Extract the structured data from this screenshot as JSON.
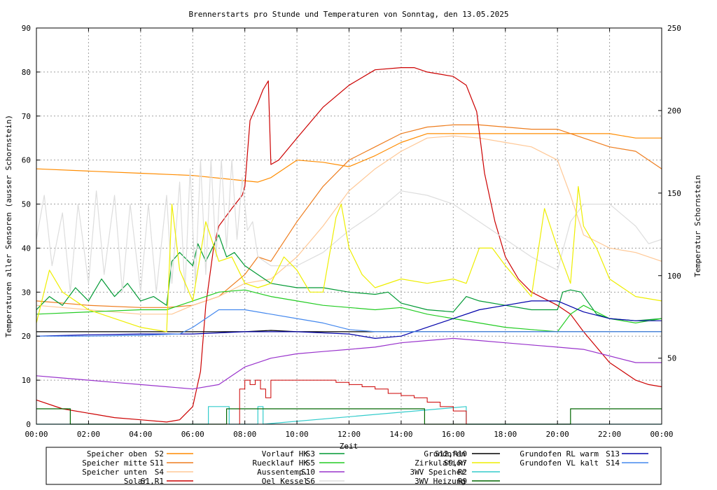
{
  "chart_data": {
    "type": "line",
    "title": "Brennerstarts pro Stunde und Temperaturen von Sonntag, den 13.05.2025",
    "xlabel": "Zeit",
    "ylabel": "Temperaturen aller Sensoren (ausser Schornstein)",
    "y2label": "Temperatur Schornstein",
    "xlim": [
      0,
      24
    ],
    "ylim": [
      0,
      90
    ],
    "y2lim": [
      10,
      250
    ],
    "grid": true,
    "x_ticks": [
      "00:00",
      "02:00",
      "04:00",
      "06:00",
      "08:00",
      "10:00",
      "12:00",
      "14:00",
      "16:00",
      "18:00",
      "20:00",
      "22:00",
      "00:00"
    ],
    "y_ticks": [
      "0",
      "10",
      "20",
      "30",
      "40",
      "50",
      "60",
      "70",
      "80",
      "90"
    ],
    "y2_ticks": [
      "50",
      "100",
      "150",
      "200",
      "250"
    ],
    "colors": {
      "ylabel": "#000000",
      "y2label": "#ff33ff",
      "grid": "#a0a0a0"
    },
    "legend": [
      {
        "name": "Speicher oben",
        "code": "S2",
        "color": "#ff8c00"
      },
      {
        "name": "Speicher mitte",
        "code": "S11",
        "color": "#ee7d1e"
      },
      {
        "name": "Speicher unten",
        "code": "S4",
        "color": "#ffc896"
      },
      {
        "name": "Solar",
        "code": "S1,R1",
        "color": "#cc0000"
      },
      {
        "name": "Vorlauf HK",
        "code": "S3",
        "color": "#009933"
      },
      {
        "name": "Ruecklauf HK",
        "code": "S5",
        "color": "#22cc22"
      },
      {
        "name": "Aussentemp.",
        "code": "S10",
        "color": "#9933cc"
      },
      {
        "name": "Oel Kessel",
        "code": "S6",
        "color": "#dddddd"
      },
      {
        "name": "Grundofen",
        "code": "S12,R10",
        "color": "#000000"
      },
      {
        "name": "Zirkulation",
        "code": "S9,R7",
        "color": "#eeee00"
      },
      {
        "name": "3WV Speicher",
        "code": "R2",
        "color": "#33cccc"
      },
      {
        "name": "3WV Heizung",
        "code": "R9",
        "color": "#006600"
      },
      {
        "name": "Grundofen RL warm",
        "code": "S13",
        "color": "#0000aa"
      },
      {
        "name": "Grundofen VL kalt",
        "code": "S14",
        "color": "#4488ee"
      }
    ],
    "series": [
      {
        "name": "Speicher oben",
        "color": "#ff8c00",
        "x": [
          0,
          2,
          4,
          6,
          8.5,
          9,
          10,
          11,
          12,
          13,
          14,
          15,
          16,
          17,
          18,
          19,
          20,
          21,
          22,
          23,
          24
        ],
        "y": [
          58,
          57.5,
          57,
          56.5,
          55,
          56,
          60,
          59.5,
          58.5,
          61,
          64,
          66,
          66,
          66,
          66,
          66,
          66,
          66,
          66,
          65,
          65
        ]
      },
      {
        "name": "Speicher mitte",
        "color": "#ee7d1e",
        "x": [
          0,
          2,
          4,
          5,
          6,
          7,
          8,
          8.5,
          9,
          10,
          11,
          12,
          13,
          14,
          15,
          16,
          17,
          18,
          19,
          20,
          21,
          22,
          23,
          24
        ],
        "y": [
          28,
          27,
          26.5,
          26.5,
          27,
          29,
          34,
          38,
          37,
          46,
          54,
          60,
          63,
          66,
          67.5,
          68,
          68,
          67.5,
          67,
          67,
          65,
          63,
          62,
          58
        ]
      },
      {
        "name": "Speicher unten",
        "color": "#ffc896",
        "x": [
          0,
          2,
          4,
          5.2,
          6,
          7,
          8,
          9,
          10,
          11,
          12,
          13,
          14,
          15,
          16,
          17,
          18,
          19,
          20,
          20.5,
          21,
          22,
          23,
          24
        ],
        "y": [
          27,
          26,
          25,
          25,
          27,
          29,
          32,
          33,
          38,
          45,
          53,
          58,
          62,
          65,
          65.5,
          65,
          64,
          63,
          60,
          52,
          43,
          40,
          39,
          37
        ]
      },
      {
        "name": "Solar",
        "color": "#cc0000",
        "x": [
          0,
          1,
          2,
          3,
          4,
          5,
          5.5,
          6,
          6.3,
          6.5,
          6.8,
          7,
          7.5,
          7.9,
          8,
          8.2,
          8.5,
          8.7,
          8.9,
          9,
          9.3,
          10,
          11,
          12,
          13,
          14,
          14.5,
          15,
          15.5,
          16,
          16.5,
          16.9,
          17.2,
          17.6,
          18,
          18.5,
          19,
          20,
          20.5,
          21,
          22,
          22.5,
          23,
          23.5,
          24
        ],
        "y": [
          5.5,
          3.5,
          2.5,
          1.5,
          1,
          0.5,
          1,
          4,
          12,
          27,
          40,
          45,
          49,
          52,
          54,
          69,
          73,
          76,
          78,
          59,
          60,
          65,
          72,
          77,
          80.5,
          81,
          81,
          80,
          79.5,
          79,
          77,
          71,
          57,
          46,
          38,
          33,
          30,
          27,
          25,
          21,
          14,
          12,
          10,
          9,
          8.5
        ]
      },
      {
        "name": "Vorlauf HK",
        "color": "#009933",
        "x": [
          0,
          0.5,
          1,
          1.5,
          2,
          2.5,
          3,
          3.5,
          4,
          4.5,
          5,
          5.2,
          5.5,
          6,
          6.2,
          6.5,
          7,
          7.3,
          7.6,
          8,
          8.5,
          9,
          10,
          11,
          12,
          13,
          13.5,
          14,
          15,
          16,
          16.5,
          17,
          18,
          19,
          20,
          20.2,
          20.5,
          20.9,
          21.5,
          22,
          23,
          24
        ],
        "y": [
          26,
          29,
          27,
          31,
          28,
          33,
          29,
          32,
          28,
          29,
          27,
          37,
          39,
          36,
          41,
          37,
          43,
          38,
          39,
          36,
          34,
          32,
          31,
          31,
          30,
          29.5,
          30,
          27.5,
          26,
          25.5,
          29,
          28,
          27,
          26,
          26,
          30,
          30.5,
          30,
          25,
          24,
          23.5,
          24
        ]
      },
      {
        "name": "Ruecklauf HK",
        "color": "#22cc22",
        "x": [
          0,
          2,
          4,
          5,
          6,
          7,
          8,
          9,
          10,
          11,
          12,
          13,
          14,
          15,
          16,
          17,
          18,
          19,
          20,
          20.5,
          21,
          22,
          23,
          24
        ],
        "y": [
          25,
          25.5,
          26,
          26,
          28,
          30,
          30.5,
          29,
          28,
          27,
          26.5,
          26,
          26.5,
          25,
          24,
          23,
          22,
          21.5,
          21,
          25,
          27,
          24,
          23,
          24
        ]
      },
      {
        "name": "Aussentemp.",
        "color": "#9933cc",
        "x": [
          0,
          1,
          2,
          3,
          4,
          5,
          6,
          7,
          7.5,
          8,
          9,
          10,
          11,
          12,
          13,
          14,
          15,
          16,
          17,
          18,
          19,
          20,
          21,
          22,
          23,
          24
        ],
        "y": [
          11,
          10.5,
          10,
          9.5,
          9,
          8.5,
          8,
          9,
          11,
          13,
          15,
          16,
          16.5,
          17,
          17.5,
          18.5,
          19,
          19.5,
          19,
          18.5,
          18,
          17.5,
          17,
          15.5,
          14,
          14
        ]
      },
      {
        "name": "Oel Kessel",
        "color": "#dddddd",
        "x": [
          0,
          0.3,
          0.6,
          1,
          1.3,
          1.6,
          2,
          2.3,
          2.6,
          3,
          3.3,
          3.6,
          4,
          4.3,
          4.6,
          5,
          5.2,
          5.5,
          5.7,
          5.9,
          6.1,
          6.3,
          6.5,
          6.7,
          6.9,
          7.1,
          7.3,
          7.5,
          7.7,
          7.9,
          8.1,
          8.3,
          8.5,
          9,
          10,
          11,
          12,
          13,
          14,
          15,
          16,
          17,
          18,
          19,
          20,
          20.5,
          21,
          22,
          23,
          23.5,
          24
        ],
        "y": [
          42,
          52,
          36,
          48,
          30,
          50,
          32,
          53,
          34,
          52,
          30,
          50,
          30,
          50,
          30,
          52,
          32,
          55,
          30,
          58,
          32,
          60,
          34,
          60,
          38,
          60,
          40,
          60,
          42,
          56,
          44,
          46,
          38,
          36,
          36,
          39,
          44,
          48,
          53,
          52,
          50,
          46,
          42,
          38,
          35,
          46,
          50,
          50,
          45,
          41,
          42
        ]
      },
      {
        "name": "Grundofen",
        "color": "#000000",
        "x": [
          0,
          4,
          6,
          8,
          9,
          10,
          12,
          14,
          16,
          18,
          20,
          22,
          24
        ],
        "y": [
          21,
          21,
          21,
          21,
          21.3,
          21,
          21,
          21,
          21,
          21,
          21,
          21,
          21
        ]
      },
      {
        "name": "Zirkulation",
        "color": "#eeee00",
        "x": [
          0,
          0.5,
          1,
          1.5,
          2,
          3,
          4,
          5,
          5.2,
          5.5,
          6,
          6.5,
          7,
          7.5,
          8,
          8.5,
          9,
          9.5,
          10,
          10.5,
          11,
          11.5,
          11.7,
          12,
          12.5,
          13,
          14,
          15,
          16,
          16.5,
          17,
          17.5,
          18,
          19,
          19.5,
          20,
          20.5,
          20.8,
          21,
          21.5,
          22,
          23,
          24
        ],
        "y": [
          23,
          35,
          30,
          28,
          26,
          24,
          22,
          21,
          50,
          35,
          28,
          46,
          37,
          38,
          32,
          31,
          32,
          38,
          35,
          30,
          30,
          47,
          50,
          40,
          34,
          31,
          33,
          32,
          33,
          32,
          40,
          40,
          36,
          29,
          49,
          40,
          32,
          54,
          45,
          40,
          33,
          29,
          28
        ]
      },
      {
        "name": "3WV Speicher",
        "color": "#33cccc",
        "step": true,
        "x": [
          0,
          6.6,
          6.6,
          7.4,
          7.4,
          8.5,
          8.5,
          8.7,
          8.7,
          16.5,
          16.5,
          24
        ],
        "y": [
          0,
          0,
          4,
          4,
          0,
          0,
          4,
          4,
          0,
          4,
          0,
          0
        ]
      },
      {
        "name": "3WV Heizung",
        "color": "#006600",
        "step": true,
        "x": [
          0,
          0,
          1.3,
          1.3,
          7.3,
          7.3,
          14.9,
          14.9,
          20.5,
          20.5,
          24
        ],
        "y": [
          3.5,
          3.5,
          3.5,
          0,
          0,
          3.5,
          3.5,
          0,
          0,
          3.5,
          3.5
        ]
      },
      {
        "name": "Grundofen RL warm",
        "color": "#0000aa",
        "x": [
          0,
          2,
          4,
          6,
          8,
          10,
          12,
          13,
          14,
          15,
          16,
          17,
          18,
          19,
          20,
          21,
          22,
          23,
          24
        ],
        "y": [
          20,
          20.3,
          20.5,
          20.5,
          21,
          21,
          20.5,
          19.5,
          20,
          22,
          24,
          26,
          27,
          28,
          28,
          25.5,
          24,
          23.5,
          23.5
        ]
      },
      {
        "name": "Grundofen VL kalt",
        "color": "#4488ee",
        "x": [
          0,
          2,
          4,
          5.5,
          6,
          6.5,
          7,
          8,
          9,
          10,
          11,
          12,
          13,
          14,
          16,
          18,
          20,
          22,
          24
        ],
        "y": [
          20,
          20,
          20.2,
          20.5,
          22,
          24,
          26,
          26,
          25,
          24,
          23,
          21.5,
          21,
          21,
          21,
          21,
          21,
          21,
          21
        ]
      }
    ],
    "bar_series": {
      "name": "Brennerstarts",
      "color": "#cc0000",
      "x": [
        7.8,
        8,
        8.2,
        8.4,
        8.6,
        8.8,
        9,
        9.5,
        10,
        10.5,
        11,
        11.5,
        12,
        12.5,
        13,
        13.5,
        14,
        14.5,
        15,
        15.5,
        16
      ],
      "y": [
        8,
        10,
        9,
        10,
        8,
        6,
        10,
        10,
        10,
        10,
        10,
        9.5,
        9,
        8.5,
        8,
        7,
        6.5,
        6,
        5,
        4,
        3
      ]
    }
  }
}
